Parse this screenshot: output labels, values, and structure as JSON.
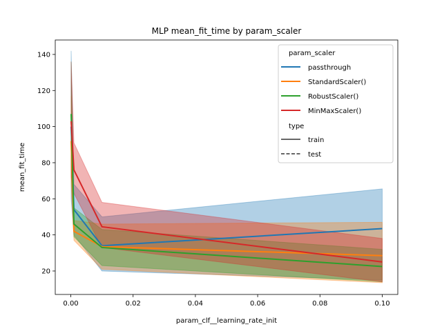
{
  "chart_data": {
    "type": "line",
    "title": "MLP mean_fit_time by param_scaler",
    "xlabel": "param_clf__learning_rate_init",
    "ylabel": "mean_fit_time",
    "xlim": [
      -0.005,
      0.105
    ],
    "ylim": [
      7,
      148
    ],
    "xticks": [
      0.0,
      0.02,
      0.04,
      0.06,
      0.08,
      0.1
    ],
    "xtick_labels": [
      "0.00",
      "0.02",
      "0.04",
      "0.06",
      "0.08",
      "0.10"
    ],
    "yticks": [
      20,
      40,
      60,
      80,
      100,
      120,
      140
    ],
    "ytick_labels": [
      "20",
      "40",
      "60",
      "80",
      "100",
      "120",
      "140"
    ],
    "grid": false,
    "legend_position": "top-right",
    "legend": {
      "hue_title": "param_scaler",
      "style_title": "type",
      "style_entries": [
        {
          "label": "train",
          "dash": "solid"
        },
        {
          "label": "test",
          "dash": "dashed"
        }
      ]
    },
    "x": [
      0.0001,
      0.001,
      0.01,
      0.1
    ],
    "series": [
      {
        "name": "passthrough",
        "color": "#1f77b4",
        "values": [
          100,
          54,
          34,
          43.5
        ],
        "lower": [
          60,
          40,
          20,
          15
        ],
        "upper": [
          142,
          68,
          50,
          65.5
        ]
      },
      {
        "name": "StandardScaler()",
        "color": "#ff7f0e",
        "values": [
          92,
          42,
          33.5,
          28.5
        ],
        "lower": [
          68,
          37,
          21,
          13.5
        ],
        "upper": [
          117,
          48,
          46,
          47
        ]
      },
      {
        "name": "RobustScaler()",
        "color": "#2ca02c",
        "values": [
          107,
          46,
          33,
          22.5
        ],
        "lower": [
          78,
          39,
          23,
          14
        ],
        "upper": [
          136,
          55,
          43,
          32
        ]
      },
      {
        "name": "MinMaxScaler()",
        "color": "#d62728",
        "values": [
          103,
          76,
          44.5,
          25
        ],
        "lower": [
          72,
          63,
          33,
          14
        ],
        "upper": [
          136,
          91,
          58,
          38
        ]
      }
    ]
  }
}
